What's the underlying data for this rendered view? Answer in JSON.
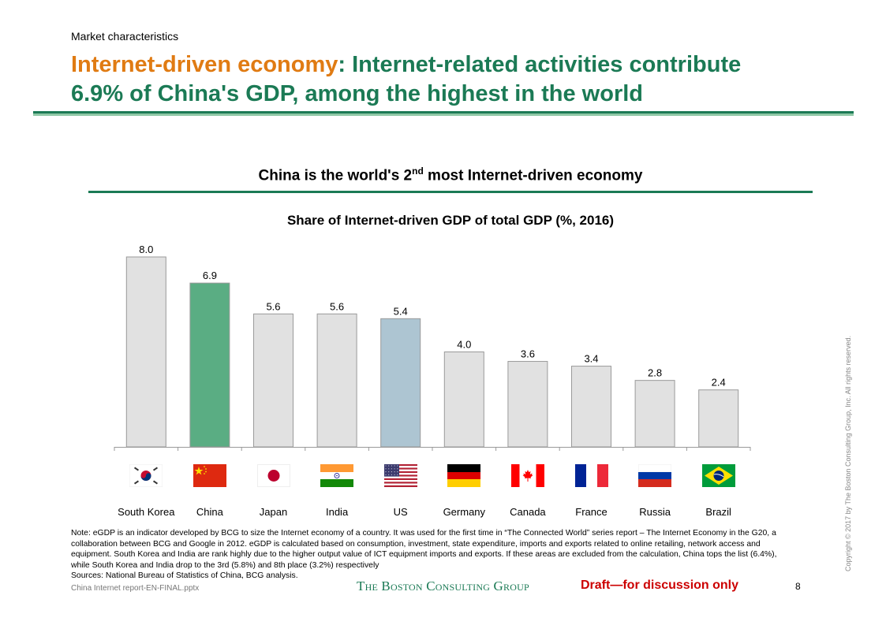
{
  "header": {
    "section_label": "Market characteristics",
    "headline_accent": "Internet-driven economy",
    "headline_rest_line1": ": Internet-related activities contribute",
    "headline_line2": "6.9% of China's GDP, among the highest in the world"
  },
  "subheading": {
    "prefix": "China is the world's 2",
    "superscript": "nd",
    "suffix": " most Internet-driven economy"
  },
  "colors": {
    "brand_green": "#1b7a55",
    "accent_orange": "#e07b13",
    "highlight_bar_china": "#5aad83",
    "highlight_bar_us": "#adc5d2",
    "default_bar": "#e1e1e1",
    "draft_red": "#cc0000"
  },
  "chart_data": {
    "type": "bar",
    "title": "Share of Internet-driven GDP of total GDP (%, 2016)",
    "xlabel": "",
    "ylabel": "",
    "ylim": [
      0,
      8
    ],
    "grid": false,
    "categories": [
      "South Korea",
      "China",
      "Japan",
      "India",
      "US",
      "Germany",
      "Canada",
      "France",
      "Russia",
      "Brazil"
    ],
    "values": [
      8.0,
      6.9,
      5.6,
      5.6,
      5.4,
      4.0,
      3.6,
      3.4,
      2.8,
      2.4
    ],
    "value_labels": [
      "8.0",
      "6.9",
      "5.6",
      "5.6",
      "5.4",
      "4.0",
      "3.6",
      "3.4",
      "2.8",
      "2.4"
    ],
    "highlights": {
      "China": "#5aad83",
      "US": "#adc5d2"
    },
    "flags": [
      "south-korea-flag-icon",
      "china-flag-icon",
      "japan-flag-icon",
      "india-flag-icon",
      "us-flag-icon",
      "germany-flag-icon",
      "canada-flag-icon",
      "france-flag-icon",
      "russia-flag-icon",
      "brazil-flag-icon"
    ]
  },
  "footer": {
    "notes": [
      "Note: eGDP is an indicator developed by BCG to size the Internet economy of a country. It was used for the first time in “The Connected World” series report – The Internet Economy in the G20, a",
      "collaboration between BCG and Google in 2012. eGDP is calculated based on consumption, investment, state expenditure, imports and exports related to online retailing, network access and",
      "equipment. South Korea and India are rank highly due to the higher output value of ICT equipment imports and exports. If these areas are excluded from the calculation, China tops the list (6.4%),",
      "while South Korea and India drop to the 3rd (5.8%) and 8th place (3.2%) respectively",
      "Sources: National Bureau of Statistics of China, BCG analysis."
    ],
    "file_name": "China Internet report-EN-FINAL.pptx",
    "logo_text": "The Boston Consulting Group",
    "draft_label": "Draft—for discussion only",
    "page_number": "8",
    "copyright": "Copyright © 2017 by The Boston Consulting Group, Inc. All rights reserved."
  }
}
